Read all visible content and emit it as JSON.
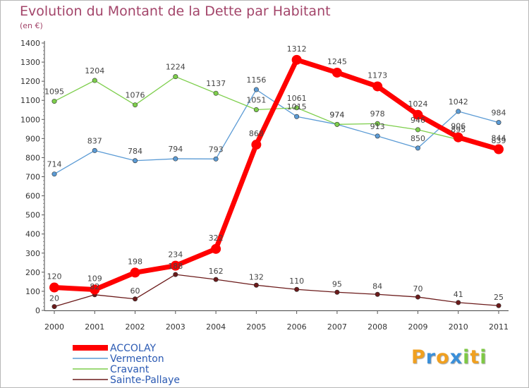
{
  "chart_data": {
    "type": "line",
    "title": "Evolution du Montant de la Dette par Habitant",
    "subtitle": "(en €)",
    "xlabel": "",
    "ylabel": "",
    "categories": [
      "2000",
      "2001",
      "2002",
      "2003",
      "2004",
      "2005",
      "2006",
      "2007",
      "2008",
      "2009",
      "2010",
      "2011"
    ],
    "ylim": [
      0,
      1400
    ],
    "yticks": [
      0,
      100,
      200,
      300,
      400,
      500,
      600,
      700,
      800,
      900,
      1000,
      1100,
      1200,
      1300,
      1400
    ],
    "grid": false,
    "legend_position": "bottom-left",
    "series": [
      {
        "name": "Vermenton",
        "color": "#5b9bd5",
        "values": [
          714,
          837,
          784,
          794,
          793,
          1156,
          1015,
          974,
          913,
          850,
          1042,
          984
        ]
      },
      {
        "name": "Cravant",
        "color": "#7dce4b",
        "values": [
          1095,
          1204,
          1076,
          1224,
          1137,
          1051,
          1061,
          974,
          978,
          946,
          895,
          839
        ]
      },
      {
        "name": "Sainte-Pallaye",
        "color": "#6b1a1a",
        "values": [
          20,
          82,
          60,
          188,
          162,
          132,
          110,
          95,
          84,
          70,
          41,
          25
        ]
      },
      {
        "name": "ACCOLAY",
        "color": "#ff0000",
        "values": [
          120,
          109,
          198,
          234,
          322,
          868,
          1312,
          1245,
          1173,
          1024,
          906,
          844
        ]
      }
    ]
  },
  "branding": {
    "logo_letters": [
      "P",
      "r",
      "o",
      "x",
      "i",
      "t",
      "i"
    ],
    "logo_colors": [
      "#f0a020",
      "#3a8fd9",
      "#f0a020",
      "#3a8fd9",
      "#7ec845",
      "#f0a020",
      "#7ec845"
    ]
  }
}
